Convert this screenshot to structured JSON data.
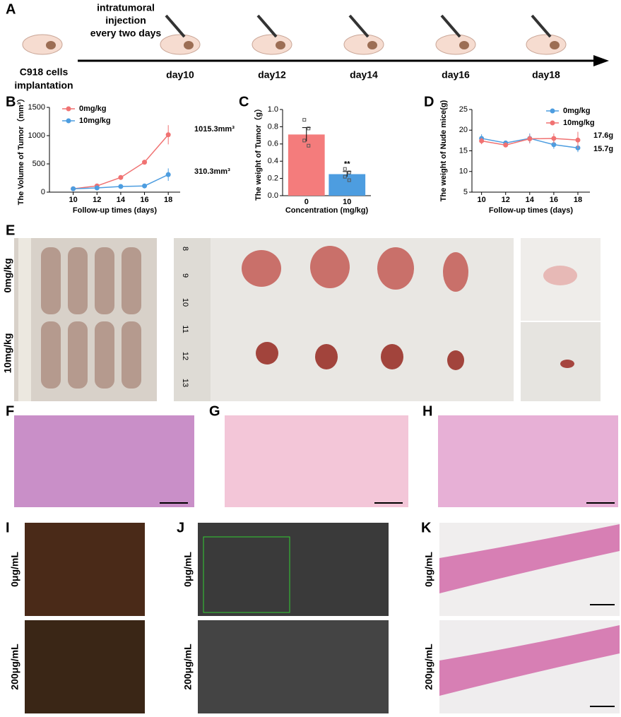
{
  "panel_labels": [
    "A",
    "B",
    "C",
    "D",
    "E",
    "F",
    "G",
    "H",
    "I",
    "J",
    "K"
  ],
  "timeline": {
    "injection_note": [
      "intratumoral",
      "injection",
      "every two days"
    ],
    "start_label": [
      "C918 cells",
      "implantation"
    ],
    "days": [
      "day10",
      "day12",
      "day14",
      "day16",
      "day18"
    ]
  },
  "photo_labels": {
    "E": [
      "0mg/kg",
      "10mg/kg"
    ],
    "E_ruler": [
      "8",
      "9",
      "10",
      "11",
      "12",
      "13"
    ],
    "I": [
      "0μg/mL",
      "200μg/mL"
    ],
    "J": [
      "0μg/mL",
      "200μg/mL"
    ],
    "K": [
      "0μg/mL",
      "200μg/mL"
    ]
  },
  "chart_data": [
    {
      "type": "line",
      "x": [
        10,
        12,
        14,
        16,
        18
      ],
      "xlim": [
        8,
        19
      ],
      "xticks": [
        10,
        12,
        14,
        16,
        18
      ],
      "ylim": [
        0,
        1500
      ],
      "yticks": [
        0,
        500,
        1000,
        1500
      ],
      "x_label": "Follow-up times (days)",
      "y_label": "The Volume of Tumor（mm³）",
      "legend": "upper left",
      "series": [
        {
          "name": "0mg/kg",
          "color": "#f07272",
          "values": [
            60,
            110,
            260,
            530,
            1015.3
          ],
          "errors": [
            10,
            15,
            30,
            40,
            170
          ]
        },
        {
          "name": "10mg/kg",
          "color": "#4d9de0",
          "values": [
            60,
            75,
            100,
            110,
            310.3
          ],
          "errors": [
            10,
            10,
            15,
            15,
            110
          ]
        }
      ],
      "annotations": [
        "1015.3mm³",
        "310.3mm³"
      ]
    },
    {
      "type": "bar",
      "categories": [
        "0",
        "10"
      ],
      "values": [
        0.71,
        0.25
      ],
      "errors": [
        0.08,
        0.03
      ],
      "colors": [
        "#f47c7c",
        "#4d9de0"
      ],
      "points": [
        [
          0.88,
          0.78,
          0.64,
          0.58
        ],
        [
          0.31,
          0.27,
          0.22,
          0.18
        ]
      ],
      "ylim": [
        0,
        1
      ],
      "yticks": [
        {
          "value": 0,
          "label": "0.0"
        },
        0.2,
        0.4,
        0.6,
        0.8,
        {
          "value": 1,
          "label": "1.0"
        }
      ],
      "x_label": "Concentration (mg/kg)",
      "y_label": "The weight of Tumor（g）",
      "annotations": [
        "**"
      ]
    },
    {
      "type": "line",
      "x": [
        10,
        12,
        14,
        16,
        18
      ],
      "xlim": [
        9.2,
        19
      ],
      "xticks": [
        10,
        12,
        14,
        16,
        18
      ],
      "ylim": [
        5,
        25
      ],
      "yticks": [
        5,
        10,
        15,
        20,
        25
      ],
      "x_label": "Follow-up times (days)",
      "y_label": "The weight of Nude mice(g)",
      "legend": "upper right",
      "series": [
        {
          "name": "0mg/kg",
          "color": "#4d9de0",
          "values": [
            18,
            16.9,
            18,
            16.5,
            15.7
          ],
          "errors": [
            1,
            0.5,
            1.2,
            1,
            1
          ]
        },
        {
          "name": "10mg/kg",
          "color": "#f07272",
          "values": [
            17.4,
            16.4,
            17.9,
            18,
            17.6
          ],
          "errors": [
            0.8,
            0.4,
            1,
            1.2,
            2
          ]
        }
      ],
      "annotations": [
        "17.6g",
        "15.7g"
      ]
    }
  ]
}
